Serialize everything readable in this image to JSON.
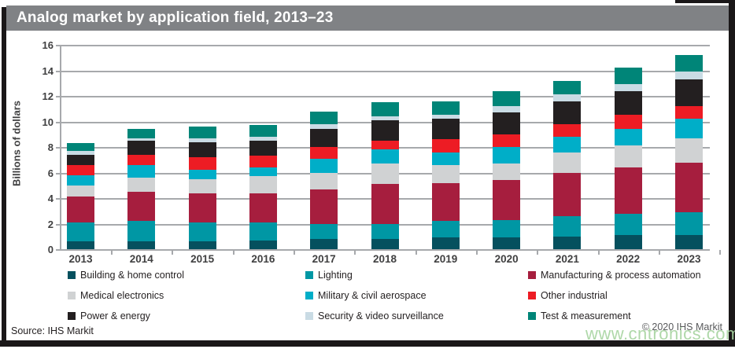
{
  "title": "Analog market by application field, 2013–23",
  "footer": {
    "source": "Source: IHS Markit",
    "copyright": "© 2020 IHS Markit",
    "watermark": "www.cntronics.com"
  },
  "colors": {
    "title_bar": "#808285",
    "title_text": "#ffffff",
    "frame": "#1a1718",
    "grid": "#a7a9ac",
    "axis_text": "#404041",
    "watermark": "#a9d5a2"
  },
  "chart_data": {
    "type": "bar",
    "stacked": true,
    "title": "Analog market by application field, 2013–23",
    "xlabel": "",
    "ylabel": "Billions of dollars",
    "ylim": [
      0,
      16
    ],
    "ytick_step": 2,
    "grid": true,
    "legend_position": "bottom",
    "categories": [
      "2013",
      "2014",
      "2015",
      "2016",
      "2017",
      "2018",
      "2019",
      "2020",
      "2021",
      "2022",
      "2023"
    ],
    "series": [
      {
        "name": "Building & home control",
        "color": "#05505e",
        "values": [
          0.6,
          0.6,
          0.6,
          0.7,
          0.8,
          0.8,
          0.9,
          0.9,
          1.0,
          1.1,
          1.1
        ]
      },
      {
        "name": "Lighting",
        "color": "#0097a4",
        "values": [
          1.5,
          1.6,
          1.5,
          1.4,
          1.2,
          1.2,
          1.3,
          1.4,
          1.6,
          1.7,
          1.8
        ]
      },
      {
        "name": "Manufacturing & process automation",
        "color": "#a61e3e",
        "values": [
          2.0,
          2.3,
          2.3,
          2.3,
          2.7,
          3.1,
          3.0,
          3.1,
          3.4,
          3.6,
          3.9
        ]
      },
      {
        "name": "Medical electronics",
        "color": "#d0d2d3",
        "values": [
          0.9,
          1.1,
          1.1,
          1.3,
          1.3,
          1.6,
          1.4,
          1.3,
          1.6,
          1.7,
          1.9
        ]
      },
      {
        "name": "Military & civil aerospace",
        "color": "#00aec8",
        "values": [
          0.8,
          1.0,
          0.7,
          0.7,
          1.1,
          1.1,
          1.0,
          1.3,
          1.2,
          1.3,
          1.5
        ]
      },
      {
        "name": "Other industrial",
        "color": "#ed1c24",
        "values": [
          0.8,
          0.8,
          1.0,
          0.9,
          0.9,
          0.7,
          1.0,
          1.0,
          1.0,
          1.1,
          1.0
        ]
      },
      {
        "name": "Power & energy",
        "color": "#231f20",
        "values": [
          0.8,
          1.1,
          1.2,
          1.2,
          1.4,
          1.6,
          1.6,
          1.7,
          1.8,
          1.9,
          2.1
        ]
      },
      {
        "name": "Security & video surveillance",
        "color": "#c9dbe4",
        "values": [
          0.3,
          0.2,
          0.3,
          0.3,
          0.4,
          0.3,
          0.3,
          0.5,
          0.5,
          0.5,
          0.6
        ]
      },
      {
        "name": "Test & measurement",
        "color": "#008578",
        "values": [
          0.6,
          0.7,
          0.9,
          0.9,
          1.0,
          1.1,
          1.1,
          1.2,
          1.1,
          1.3,
          1.3
        ]
      }
    ],
    "totals": [
      8.3,
      9.4,
      9.6,
      9.7,
      10.8,
      11.5,
      11.6,
      12.4,
      13.2,
      14.2,
      15.2
    ]
  }
}
